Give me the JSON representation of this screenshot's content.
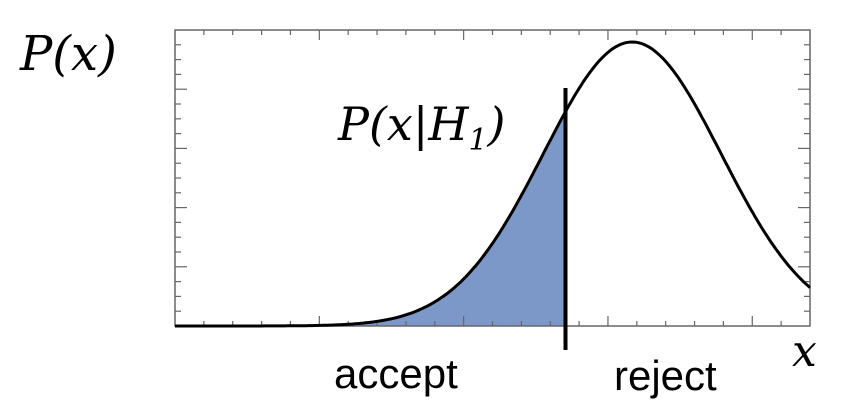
{
  "labels": {
    "y_axis": "P(x)",
    "curve": "P(x|H",
    "curve_subscript": "1",
    "curve_close": ")",
    "x_axis": "x",
    "accept": "accept",
    "reject": "reject"
  },
  "chart_data": {
    "type": "line",
    "description_free": true,
    "curve": {
      "shape": "gaussian",
      "mean": 0.72,
      "sigma": 0.14
    },
    "xlim": [
      0,
      1
    ],
    "ylim": [
      0,
      1
    ],
    "threshold_x": 0.615,
    "shaded_region": "left-of-threshold",
    "grid": false,
    "ticks_x": 22,
    "ticks_y_major": 5,
    "ticks_y_minor_per_major": 4
  },
  "colors": {
    "fill": "#7b98c8",
    "curve": "#000000",
    "axes": "#555555"
  }
}
